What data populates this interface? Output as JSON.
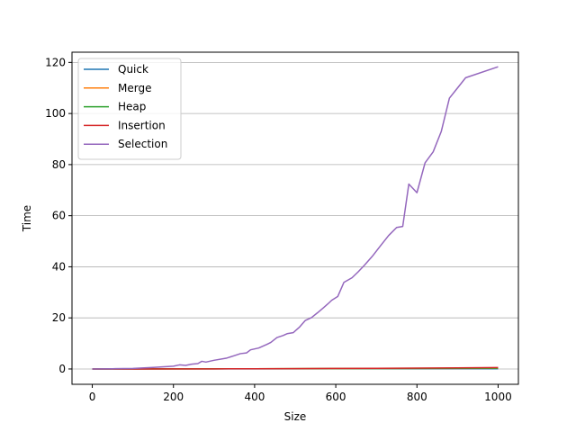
{
  "chart_data": {
    "type": "line",
    "title": "",
    "xlabel": "Size",
    "ylabel": "Time",
    "xlim": [
      -50,
      1050
    ],
    "ylim": [
      -6,
      124
    ],
    "xticks": [
      0,
      200,
      400,
      600,
      800,
      1000
    ],
    "yticks": [
      0,
      20,
      40,
      60,
      80,
      100,
      120
    ],
    "grid": "y",
    "legend": "top-left",
    "series": [
      {
        "name": "Quick",
        "color": "#1f77b4",
        "points": [
          [
            0,
            0
          ],
          [
            200,
            0.02
          ],
          [
            400,
            0.04
          ],
          [
            600,
            0.06
          ],
          [
            800,
            0.08
          ],
          [
            1000,
            0.1
          ]
        ]
      },
      {
        "name": "Merge",
        "color": "#ff7f0e",
        "points": [
          [
            0,
            0
          ],
          [
            200,
            0.05
          ],
          [
            400,
            0.1
          ],
          [
            600,
            0.15
          ],
          [
            800,
            0.2
          ],
          [
            1000,
            0.25
          ]
        ]
      },
      {
        "name": "Heap",
        "color": "#2ca02c",
        "points": [
          [
            0,
            0
          ],
          [
            200,
            0.05
          ],
          [
            400,
            0.1
          ],
          [
            600,
            0.16
          ],
          [
            800,
            0.22
          ],
          [
            1000,
            0.28
          ]
        ]
      },
      {
        "name": "Insertion",
        "color": "#d62728",
        "points": [
          [
            0,
            0
          ],
          [
            100,
            0.005
          ],
          [
            200,
            0.02
          ],
          [
            300,
            0.05
          ],
          [
            400,
            0.09
          ],
          [
            500,
            0.14
          ],
          [
            600,
            0.2
          ],
          [
            700,
            0.27
          ],
          [
            800,
            0.36
          ],
          [
            900,
            0.45
          ],
          [
            1000,
            0.55
          ]
        ]
      },
      {
        "name": "Selection",
        "color": "#9467bd",
        "points": [
          [
            0,
            0
          ],
          [
            50,
            0.1
          ],
          [
            100,
            0.2
          ],
          [
            150,
            0.6
          ],
          [
            200,
            1.1
          ],
          [
            215,
            1.6
          ],
          [
            230,
            1.4
          ],
          [
            245,
            1.9
          ],
          [
            260,
            2.1
          ],
          [
            270,
            3.0
          ],
          [
            280,
            2.7
          ],
          [
            300,
            3.4
          ],
          [
            330,
            4.2
          ],
          [
            350,
            5.2
          ],
          [
            365,
            6.0
          ],
          [
            380,
            6.3
          ],
          [
            390,
            7.5
          ],
          [
            410,
            8.2
          ],
          [
            430,
            9.6
          ],
          [
            440,
            10.4
          ],
          [
            455,
            12.3
          ],
          [
            470,
            13.1
          ],
          [
            480,
            13.8
          ],
          [
            495,
            14.2
          ],
          [
            510,
            16.3
          ],
          [
            525,
            19.0
          ],
          [
            540,
            20.1
          ],
          [
            555,
            22.0
          ],
          [
            570,
            24.0
          ],
          [
            580,
            25.4
          ],
          [
            590,
            26.9
          ],
          [
            605,
            28.4
          ],
          [
            620,
            33.9
          ],
          [
            640,
            35.7
          ],
          [
            655,
            38.0
          ],
          [
            670,
            40.5
          ],
          [
            690,
            44.1
          ],
          [
            710,
            48.2
          ],
          [
            730,
            52.2
          ],
          [
            750,
            55.4
          ],
          [
            765,
            55.8
          ],
          [
            780,
            72.4
          ],
          [
            800,
            69.0
          ],
          [
            820,
            80.7
          ],
          [
            840,
            85.0
          ],
          [
            860,
            93.0
          ],
          [
            880,
            106.0
          ],
          [
            900,
            110.0
          ],
          [
            920,
            114.0
          ],
          [
            1000,
            118.3
          ]
        ]
      }
    ]
  }
}
